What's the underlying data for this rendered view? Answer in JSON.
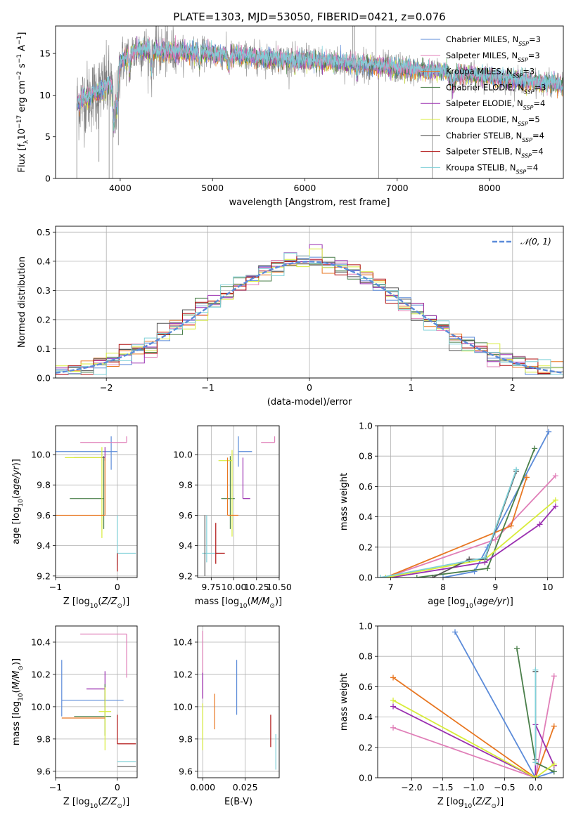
{
  "colors": {
    "chabrier_miles": "#5b8bd9",
    "salpeter_miles": "#e07070",
    "kroupa_miles": "#e87722",
    "chabrier_elodie": "#4a7f4a",
    "salpeter_elodie": "#9a2fb0",
    "kroupa_elodie": "#d8ec3a",
    "chabrier_stelib": "#555555",
    "salpeter_stelib": "#b01010",
    "kroupa_stelib": "#7fd0d8",
    "pink": "#e07fb8",
    "data": "#808080"
  },
  "chart_data": [
    {
      "id": "spectrum",
      "type": "line",
      "title": "PLATE=1303, MJD=53050, FIBERID=0421, z=0.076",
      "xlabel": "wavelength [Angstrom, rest frame]",
      "ylabel": "Flux [f_λ 10^-17 erg cm^-2 s^-1 A^-1]",
      "xlim": [
        3300,
        8800
      ],
      "ylim": [
        0,
        18.3
      ],
      "xticks": [
        4000,
        5000,
        6000,
        7000,
        8000
      ],
      "yticks": [
        0,
        5,
        10,
        15
      ],
      "grid": false,
      "legend_loc": "upper right",
      "legend": [
        {
          "label": "Chabrier MILES, N",
          "sub": "SSP",
          "tail": "=3",
          "color_key": "chabrier_miles"
        },
        {
          "label": "Salpeter MILES, N",
          "sub": "SSP",
          "tail": "=3",
          "color_key": "pink"
        },
        {
          "label": "Kroupa MILES, N",
          "sub": "SSP",
          "tail": "=3",
          "color_key": "kroupa_miles"
        },
        {
          "label": "Chabrier ELODIE, N",
          "sub": "SSP",
          "tail": "=3",
          "color_key": "chabrier_elodie"
        },
        {
          "label": "Salpeter ELODIE, N",
          "sub": "SSP",
          "tail": "=4",
          "color_key": "salpeter_elodie"
        },
        {
          "label": "Kroupa ELODIE, N",
          "sub": "SSP",
          "tail": "=5",
          "color_key": "kroupa_elodie"
        },
        {
          "label": "Chabrier STELIB, N",
          "sub": "SSP",
          "tail": "=4",
          "color_key": "chabrier_stelib"
        },
        {
          "label": "Salpeter STELIB, N",
          "sub": "SSP",
          "tail": "=4",
          "color_key": "salpeter_stelib"
        },
        {
          "label": "Kroupa STELIB, N",
          "sub": "SSP",
          "tail": "=4",
          "color_key": "kroupa_stelib"
        }
      ],
      "continuum": [
        [
          3530,
          9.0
        ],
        [
          3700,
          10.0
        ],
        [
          3900,
          11.5
        ],
        [
          4000,
          14.0
        ],
        [
          4200,
          15.5
        ],
        [
          4500,
          15.2
        ],
        [
          5000,
          15.0
        ],
        [
          5500,
          14.5
        ],
        [
          6000,
          14.2
        ],
        [
          6500,
          13.8
        ],
        [
          7000,
          13.2
        ],
        [
          7500,
          12.8
        ],
        [
          8000,
          12.2
        ],
        [
          8500,
          11.6
        ],
        [
          8800,
          11.2
        ]
      ]
    },
    {
      "id": "residuals",
      "type": "line",
      "xlabel": "(data-model)/error",
      "ylabel": "Normed distribution",
      "xlim": [
        -2.5,
        2.5
      ],
      "ylim": [
        0,
        0.52
      ],
      "xticks": [
        -2,
        -1,
        0,
        1,
        2
      ],
      "yticks": [
        0.0,
        0.1,
        0.2,
        0.3,
        0.4,
        0.5
      ],
      "grid": true,
      "legend_loc": "upper right",
      "legend": [
        {
          "label": "𝒩(0, 1)",
          "color_key": "chabrier_miles",
          "dashed": true
        }
      ]
    },
    {
      "id": "age_vs_Z",
      "type": "scatter",
      "xlabel": "Z [log10(Z/Z⊙)]",
      "ylabel": "age  [log10(age/yr)]",
      "xlim": [
        -1.0,
        0.32
      ],
      "ylim": [
        9.19,
        10.19
      ],
      "xticks": [
        -1,
        0
      ],
      "yticks": [
        9.2,
        9.4,
        9.6,
        9.8,
        10.0
      ],
      "grid": true,
      "points": [
        {
          "c": "chabrier_miles",
          "x": -0.1,
          "y": 10.02,
          "xerr": [
            0.95,
            0.1
          ],
          "yerr": [
            0.12,
            0.1
          ]
        },
        {
          "c": "pink",
          "x": 0.15,
          "y": 10.08,
          "xerr": [
            0.75,
            0.0
          ],
          "yerr": [
            0.0,
            0.04
          ]
        },
        {
          "c": "salpeter_elodie",
          "x": -0.2,
          "y": 9.98,
          "xerr": [
            0.5,
            0.0
          ],
          "yerr": [
            0.02,
            0.07
          ]
        },
        {
          "c": "chabrier_elodie",
          "x": -0.22,
          "y": 9.71,
          "xerr": [
            0.55,
            0.0
          ],
          "yerr": [
            0.2,
            0.28
          ]
        },
        {
          "c": "kroupa_elodie",
          "x": -0.25,
          "y": 9.98,
          "xerr": [
            0.6,
            0.0
          ],
          "yerr": [
            0.53,
            0.07
          ]
        },
        {
          "c": "kroupa_miles",
          "x": -0.2,
          "y": 9.6,
          "xerr": [
            0.8,
            0.0
          ],
          "yerr": [
            0.0,
            0.38
          ]
        },
        {
          "c": "kroupa_stelib",
          "x": 0.0,
          "y": 9.35,
          "xerr": [
            0.0,
            0.3
          ],
          "yerr": [
            0.08,
            0.25
          ]
        },
        {
          "c": "salpeter_stelib",
          "x": 0.0,
          "y": 9.25,
          "xerr": [
            0.0,
            0.0
          ],
          "yerr": [
            0.02,
            0.1
          ]
        }
      ]
    },
    {
      "id": "age_vs_mass",
      "type": "scatter",
      "xlabel": "mass [log10(M/M⊙)]",
      "ylabel": "",
      "xlim": [
        9.6,
        10.5
      ],
      "ylim": [
        9.19,
        10.19
      ],
      "xticks": [
        9.75,
        10.0,
        10.25,
        10.5
      ],
      "yticks": [
        9.2,
        9.4,
        9.6,
        9.8,
        10.0
      ],
      "grid": true,
      "points": [
        {
          "c": "chabrier_miles",
          "x": 10.05,
          "y": 10.02,
          "xerr": [
            0.0,
            0.15
          ],
          "yerr": [
            0.1,
            0.1
          ]
        },
        {
          "c": "pink",
          "x": 10.45,
          "y": 10.08,
          "xerr": [
            0.15,
            0.0
          ],
          "yerr": [
            0.0,
            0.04
          ]
        },
        {
          "c": "salpeter_elodie",
          "x": 10.1,
          "y": 9.71,
          "xerr": [
            0.0,
            0.08
          ],
          "yerr": [
            0.0,
            0.27
          ]
        },
        {
          "c": "chabrier_elodie",
          "x": 9.96,
          "y": 9.71,
          "xerr": [
            0.1,
            0.05
          ],
          "yerr": [
            0.2,
            0.28
          ]
        },
        {
          "c": "kroupa_elodie",
          "x": 9.98,
          "y": 9.96,
          "xerr": [
            0.15,
            0.0
          ],
          "yerr": [
            0.5,
            0.07
          ]
        },
        {
          "c": "kroupa_miles",
          "x": 9.93,
          "y": 9.6,
          "xerr": [
            0.0,
            0.12
          ],
          "yerr": [
            0.0,
            0.38
          ]
        },
        {
          "c": "kroupa_stelib",
          "x": 9.7,
          "y": 9.35,
          "xerr": [
            0.05,
            0.12
          ],
          "yerr": [
            0.06,
            0.25
          ]
        },
        {
          "c": "salpeter_stelib",
          "x": 9.8,
          "y": 9.35,
          "xerr": [
            0.0,
            0.1
          ],
          "yerr": [
            0.07,
            0.2
          ]
        },
        {
          "c": "chabrier_stelib",
          "x": 9.68,
          "y": 9.35,
          "xerr": [
            0.0,
            0.0
          ],
          "yerr": [
            0.15,
            0.25
          ]
        }
      ]
    },
    {
      "id": "mass_weight_vs_age",
      "type": "line",
      "xlabel": "age  [log10(age/yr)]",
      "ylabel": "mass weight",
      "xlim": [
        6.75,
        10.3
      ],
      "ylim": [
        0,
        1.0
      ],
      "xticks": [
        7,
        8,
        9,
        10
      ],
      "yticks": [
        0.0,
        0.2,
        0.4,
        0.6,
        0.8,
        1.0
      ],
      "grid": true,
      "series": [
        {
          "c": "chabrier_miles",
          "x": [
            8.0,
            8.6,
            8.85,
            10.02
          ],
          "y": [
            0.0,
            0.04,
            0.2,
            0.96
          ]
        },
        {
          "c": "pink",
          "x": [
            6.9,
            9.0,
            10.15
          ],
          "y": [
            0.0,
            0.25,
            0.67
          ]
        },
        {
          "c": "kroupa_miles",
          "x": [
            6.9,
            9.3,
            9.6
          ],
          "y": [
            0.0,
            0.34,
            0.66
          ]
        },
        {
          "c": "chabrier_elodie",
          "x": [
            7.5,
            8.85,
            9.75
          ],
          "y": [
            0.0,
            0.06,
            0.85
          ]
        },
        {
          "c": "salpeter_elodie",
          "x": [
            7.0,
            8.8,
            9.85,
            10.15
          ],
          "y": [
            0.0,
            0.1,
            0.35,
            0.47
          ]
        },
        {
          "c": "kroupa_elodie",
          "x": [
            6.9,
            8.8,
            10.15
          ],
          "y": [
            0.0,
            0.12,
            0.51
          ]
        },
        {
          "c": "chabrier_stelib",
          "x": [
            7.8,
            8.5,
            8.8,
            9.4
          ],
          "y": [
            0.0,
            0.12,
            0.12,
            0.7
          ]
        },
        {
          "c": "kroupa_stelib",
          "x": [
            6.8,
            8.8,
            9.4
          ],
          "y": [
            0.0,
            0.13,
            0.71
          ]
        }
      ]
    },
    {
      "id": "mass_vs_Z",
      "type": "scatter",
      "xlabel": "Z [log10(Z/Z⊙)]",
      "ylabel": "mass [log10(M/M⊙)]",
      "xlim": [
        -1.0,
        0.32
      ],
      "ylim": [
        9.56,
        10.5
      ],
      "xticks": [
        -1,
        0
      ],
      "yticks": [
        9.6,
        9.8,
        10.0,
        10.2,
        10.4
      ],
      "grid": true,
      "points": [
        {
          "c": "chabrier_miles",
          "x": -0.9,
          "y": 10.04,
          "xerr": [
            0.0,
            0.0
          ],
          "yerr": [
            0.1,
            0.25
          ]
        },
        {
          "c": "chabrier_miles",
          "x": -0.4,
          "y": 10.04,
          "xerr": [
            0.5,
            0.5
          ],
          "yerr": [
            0.0,
            0.0
          ]
        },
        {
          "c": "pink",
          "x": 0.15,
          "y": 10.45,
          "xerr": [
            0.75,
            0.0
          ],
          "yerr": [
            0.27,
            0.0
          ]
        },
        {
          "c": "salpeter_elodie",
          "x": -0.2,
          "y": 10.11,
          "xerr": [
            0.3,
            0.0
          ],
          "yerr": [
            0.1,
            0.11
          ]
        },
        {
          "c": "chabrier_elodie",
          "x": -0.2,
          "y": 9.94,
          "xerr": [
            0.5,
            0.1
          ],
          "yerr": [
            0.12,
            0.2
          ]
        },
        {
          "c": "kroupa_elodie",
          "x": -0.2,
          "y": 9.97,
          "xerr": [
            0.1,
            0.1
          ],
          "yerr": [
            0.24,
            0.15
          ]
        },
        {
          "c": "kroupa_miles",
          "x": -0.2,
          "y": 9.93,
          "xerr": [
            0.7,
            0.0
          ],
          "yerr": [
            0.0,
            0.0
          ]
        },
        {
          "c": "salpeter_stelib",
          "x": 0.0,
          "y": 9.77,
          "xerr": [
            0.0,
            0.3
          ],
          "yerr": [
            0.0,
            0.18
          ]
        },
        {
          "c": "kroupa_stelib",
          "x": 0.0,
          "y": 9.66,
          "xerr": [
            0.0,
            0.3
          ],
          "yerr": [
            0.0,
            0.0
          ]
        },
        {
          "c": "chabrier_stelib",
          "x": 0.0,
          "y": 9.63,
          "xerr": [
            0.0,
            0.3
          ],
          "yerr": [
            0.0,
            0.0
          ]
        }
      ]
    },
    {
      "id": "mass_vs_ebv",
      "type": "scatter",
      "xlabel": "E(B-V)",
      "ylabel": "",
      "xlim": [
        -0.003,
        0.045
      ],
      "ylim": [
        9.56,
        10.5
      ],
      "xticks": [
        0.0,
        0.025
      ],
      "yticks": [
        9.6,
        9.8,
        10.0,
        10.2,
        10.4
      ],
      "grid": true,
      "points": [
        {
          "c": "pink",
          "x": 0.0,
          "y": 10.3,
          "xerr": [
            0.0,
            0.0
          ],
          "yerr": [
            0.25,
            0.17
          ]
        },
        {
          "c": "salpeter_elodie",
          "x": 0.0,
          "y": 10.15,
          "xerr": [
            0.0,
            0.0
          ],
          "yerr": [
            0.1,
            0.06
          ]
        },
        {
          "c": "kroupa_elodie",
          "x": 0.0,
          "y": 9.9,
          "xerr": [
            0.0,
            0.0
          ],
          "yerr": [
            0.17,
            0.12
          ]
        },
        {
          "c": "kroupa_miles",
          "x": 0.007,
          "y": 9.97,
          "xerr": [
            0.0,
            0.0
          ],
          "yerr": [
            0.11,
            0.11
          ]
        },
        {
          "c": "chabrier_miles",
          "x": 0.02,
          "y": 10.12,
          "xerr": [
            0.0,
            0.0
          ],
          "yerr": [
            0.17,
            0.17
          ]
        },
        {
          "c": "salpeter_stelib",
          "x": 0.04,
          "y": 9.85,
          "xerr": [
            0.0,
            0.0
          ],
          "yerr": [
            0.1,
            0.1
          ]
        },
        {
          "c": "kroupa_stelib",
          "x": 0.043,
          "y": 9.72,
          "xerr": [
            0.0,
            0.0
          ],
          "yerr": [
            0.11,
            0.11
          ]
        }
      ]
    },
    {
      "id": "mass_weight_vs_Z",
      "type": "line",
      "xlabel": "Z [log10(Z/Z⊙)]",
      "ylabel": "mass weight",
      "xlim": [
        -2.55,
        0.45
      ],
      "ylim": [
        0,
        1.0
      ],
      "xticks": [
        -2.0,
        -1.5,
        -1.0,
        -0.5,
        0.0,
        0.5
      ],
      "yticks": [
        0.0,
        0.2,
        0.4,
        0.6,
        0.8,
        1.0
      ],
      "grid": true,
      "series": [
        {
          "c": "chabrier_miles",
          "x": [
            -1.3,
            0.0,
            0.3
          ],
          "y": [
            0.96,
            0.0,
            0.04
          ]
        },
        {
          "c": "pink",
          "x": [
            -2.3,
            0.0,
            0.3
          ],
          "y": [
            0.33,
            0.0,
            0.67
          ]
        },
        {
          "c": "kroupa_miles",
          "x": [
            -2.3,
            0.0,
            0.3
          ],
          "y": [
            0.66,
            0.0,
            0.34
          ]
        },
        {
          "c": "chabrier_elodie",
          "x": [
            -0.3,
            0.0,
            0.3
          ],
          "y": [
            0.85,
            0.1,
            0.04
          ]
        },
        {
          "c": "salpeter_elodie",
          "x": [
            -2.3,
            0.0,
            0.0,
            0.3
          ],
          "y": [
            0.47,
            0.0,
            0.35,
            0.08
          ]
        },
        {
          "c": "kroupa_elodie",
          "x": [
            -2.3,
            0.0,
            0.3
          ],
          "y": [
            0.51,
            0.0,
            0.09
          ]
        },
        {
          "c": "chabrier_stelib",
          "x": [
            0.0,
            0.0
          ],
          "y": [
            0.7,
            0.12
          ]
        },
        {
          "c": "kroupa_stelib",
          "x": [
            0.0,
            0.0
          ],
          "y": [
            0.71,
            0.1
          ]
        }
      ]
    }
  ]
}
